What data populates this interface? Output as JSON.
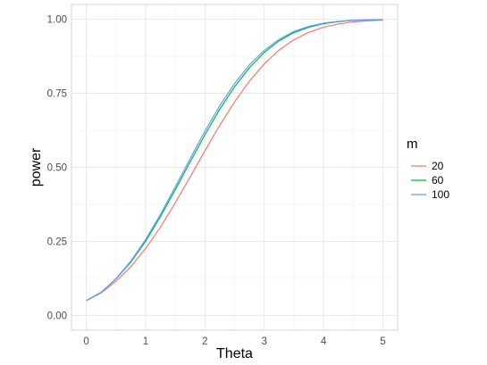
{
  "chart_data": {
    "type": "line",
    "xlabel": "Theta",
    "ylabel": "power",
    "xlim": [
      -0.25,
      5.25
    ],
    "ylim": [
      -0.05,
      1.05
    ],
    "x_ticks": [
      0,
      1,
      2,
      3,
      4,
      5
    ],
    "x_tick_labels": [
      "0",
      "1",
      "2",
      "3",
      "4",
      "5"
    ],
    "y_ticks": [
      0,
      0.25,
      0.5,
      0.75,
      1
    ],
    "y_tick_labels": [
      "0.00",
      "0.25",
      "0.50",
      "0.75",
      "1.00"
    ],
    "grid": true,
    "legend": {
      "title": "m",
      "position": "right"
    },
    "x": [
      0,
      0.25,
      0.5,
      0.75,
      1,
      1.25,
      1.5,
      1.75,
      2,
      2.25,
      2.5,
      2.75,
      3,
      3.25,
      3.5,
      3.75,
      4,
      4.25,
      4.5,
      4.75,
      5
    ],
    "series": [
      {
        "name": "20",
        "color": "#F8766D",
        "values": [
          0.05,
          0.076,
          0.115,
          0.164,
          0.226,
          0.298,
          0.38,
          0.467,
          0.556,
          0.642,
          0.721,
          0.791,
          0.849,
          0.896,
          0.931,
          0.956,
          0.973,
          0.984,
          0.991,
          0.995,
          0.997
        ]
      },
      {
        "name": "60",
        "color": "#00BA38",
        "values": [
          0.05,
          0.078,
          0.123,
          0.18,
          0.25,
          0.334,
          0.424,
          0.518,
          0.61,
          0.696,
          0.772,
          0.836,
          0.888,
          0.927,
          0.955,
          0.973,
          0.985,
          0.992,
          0.996,
          0.998,
          0.999
        ]
      },
      {
        "name": "100",
        "color": "#619CFF",
        "values": [
          0.05,
          0.078,
          0.124,
          0.183,
          0.256,
          0.341,
          0.434,
          0.529,
          0.622,
          0.708,
          0.783,
          0.846,
          0.895,
          0.932,
          0.959,
          0.976,
          0.987,
          0.993,
          0.997,
          0.998,
          0.999
        ]
      }
    ]
  }
}
